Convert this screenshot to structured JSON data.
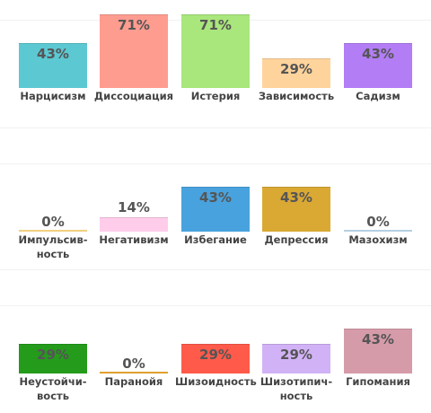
{
  "chart_data": [
    {
      "type": "bar",
      "categories": [
        "Нарцисизм",
        "Диссоциация",
        "Истерия",
        "Зависимость",
        "Садизм"
      ],
      "values": [
        43,
        71,
        71,
        29,
        43
      ],
      "value_labels": [
        "43%",
        "71%",
        "71%",
        "29%",
        "43%"
      ],
      "colors": [
        "#5cc8d2",
        "#ff9c90",
        "#a9e67c",
        "#ffd49c",
        "#b27df5"
      ]
    },
    {
      "type": "bar",
      "categories": [
        "Импульсив-\nность",
        "Негативизм",
        "Избегание",
        "Депрессия",
        "Мазохизм"
      ],
      "values": [
        0,
        14,
        43,
        43,
        0
      ],
      "value_labels": [
        "0%",
        "14%",
        "43%",
        "43%",
        "0%"
      ],
      "colors": [
        "#f0d080",
        "#ffcdea",
        "#48a2de",
        "#daa934",
        "#b4d0e2"
      ]
    },
    {
      "type": "bar",
      "categories": [
        "Неустойчи-\nвость",
        "Паранойя",
        "Шизоидность",
        "Шизотипич-\nность",
        "Гипомания"
      ],
      "values": [
        29,
        0,
        29,
        29,
        43
      ],
      "value_labels": [
        "29%",
        "0%",
        "29%",
        "29%",
        "43%"
      ],
      "colors": [
        "#249b1b",
        "#e0a030",
        "#ff5a4a",
        "#d2b2f6",
        "#d69ba9"
      ]
    }
  ]
}
